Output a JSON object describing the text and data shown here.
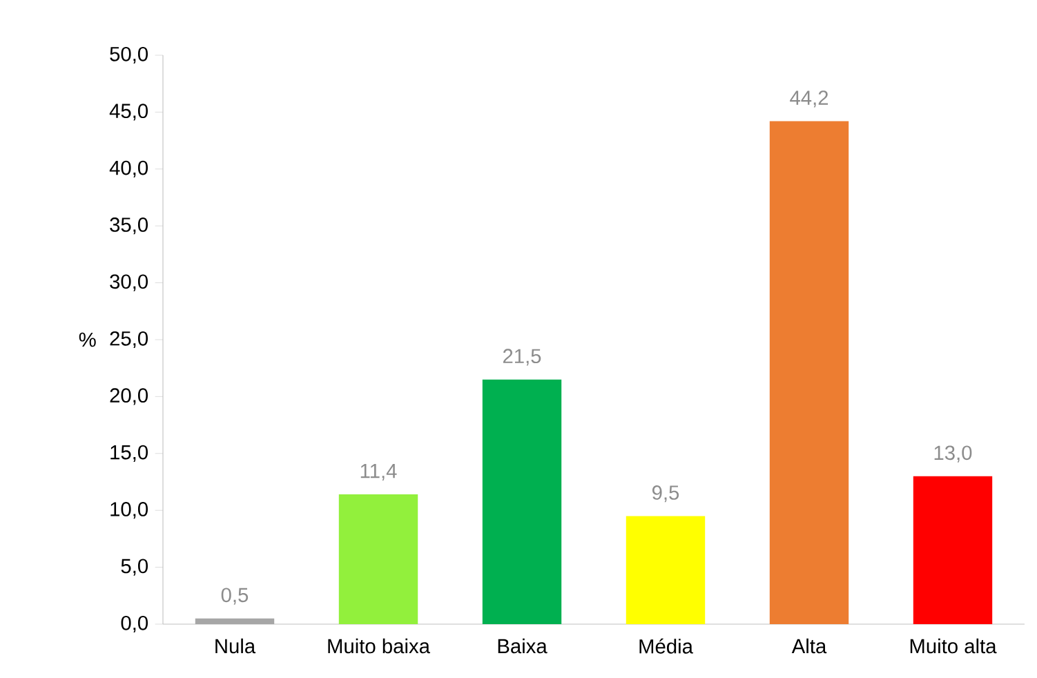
{
  "chart_data": {
    "type": "bar",
    "ylabel": "%",
    "categories": [
      "Nula",
      "Muito baixa",
      "Baixa",
      "Média",
      "Alta",
      "Muito alta"
    ],
    "values": [
      0.5,
      11.4,
      21.5,
      9.5,
      44.2,
      13.0
    ],
    "value_labels": [
      "0,5",
      "11,4",
      "21,5",
      "9,5",
      "44,2",
      "13,0"
    ],
    "colors": [
      "#a6a6a6",
      "#92f03c",
      "#00b050",
      "#ffff00",
      "#ed7d31",
      "#ff0000"
    ],
    "ylim": [
      0,
      50
    ],
    "yticks": [
      {
        "value": 0,
        "label": "0,0"
      },
      {
        "value": 5,
        "label": "5,0"
      },
      {
        "value": 10,
        "label": "10,0"
      },
      {
        "value": 15,
        "label": "15,0"
      },
      {
        "value": 20,
        "label": "20,0"
      },
      {
        "value": 25,
        "label": "25,0"
      },
      {
        "value": 30,
        "label": "30,0"
      },
      {
        "value": 35,
        "label": "35,0"
      },
      {
        "value": 40,
        "label": "40,0"
      },
      {
        "value": 45,
        "label": "45,0"
      },
      {
        "value": 50,
        "label": "50,0"
      }
    ],
    "grid": false
  }
}
